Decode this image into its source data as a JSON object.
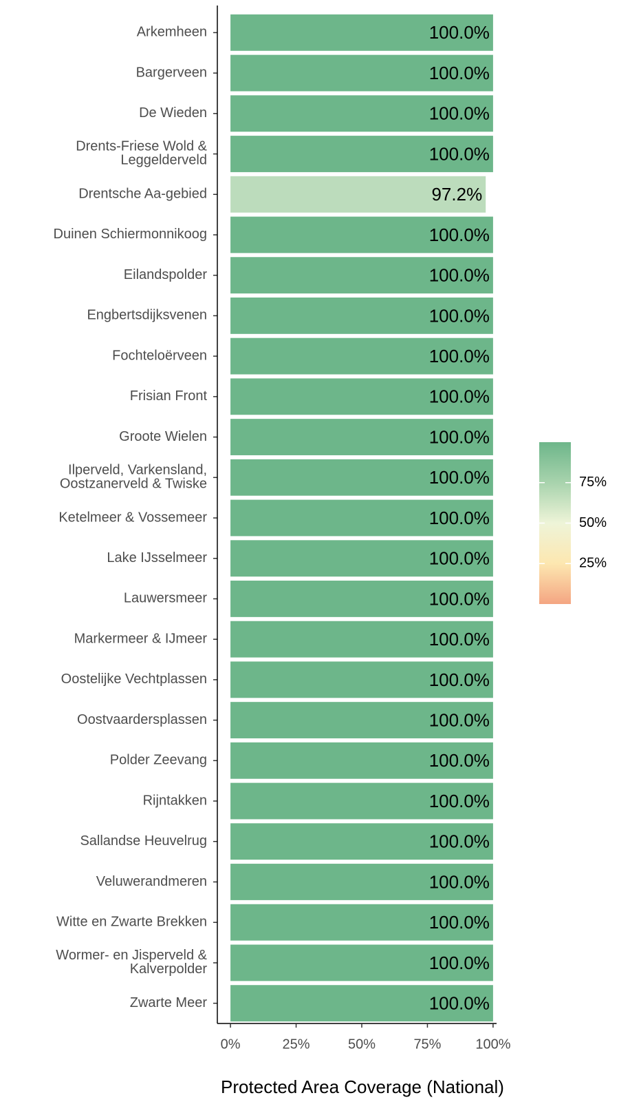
{
  "chart_data": {
    "type": "barh",
    "xlabel": "Protected Area Coverage (National)",
    "categories": [
      "Arkemheen",
      "Bargerveen",
      "De Wieden",
      "Drents-Friese Wold &\nLeggelderveld",
      "Drentsche Aa-gebied",
      "Duinen Schiermonnikoog",
      "Eilandspolder",
      "Engbertsdijksvenen",
      "Fochteloërveen",
      "Frisian Front",
      "Groote Wielen",
      "Ilperveld, Varkensland,\nOostzanerveld & Twiske",
      "Ketelmeer & Vossemeer",
      "Lake IJsselmeer",
      "Lauwersmeer",
      "Markermeer & IJmeer",
      "Oostelijke Vechtplassen",
      "Oostvaardersplassen",
      "Polder Zeevang",
      "Rijntakken",
      "Sallandse Heuvelrug",
      "Veluwerandmeren",
      "Witte en Zwarte Brekken",
      "Wormer- en Jisperveld &\nKalverpolder",
      "Zwarte Meer"
    ],
    "values": [
      100,
      100,
      100,
      100,
      97.2,
      100,
      100,
      100,
      100,
      100,
      100,
      100,
      100,
      100,
      100,
      100,
      100,
      100,
      100,
      100,
      100,
      100,
      100,
      100,
      100
    ],
    "value_labels": [
      "100.0%",
      "100.0%",
      "100.0%",
      "100.0%",
      "97.2%",
      "100.0%",
      "100.0%",
      "100.0%",
      "100.0%",
      "100.0%",
      "100.0%",
      "100.0%",
      "100.0%",
      "100.0%",
      "100.0%",
      "100.0%",
      "100.0%",
      "100.0%",
      "100.0%",
      "100.0%",
      "100.0%",
      "100.0%",
      "100.0%",
      "100.0%",
      "100.0%"
    ],
    "colors": [
      "#6db68a",
      "#6db68a",
      "#6db68a",
      "#6db68a",
      "#bcdcbc",
      "#6db68a",
      "#6db68a",
      "#6db68a",
      "#6db68a",
      "#6db68a",
      "#6db68a",
      "#6db68a",
      "#6db68a",
      "#6db68a",
      "#6db68a",
      "#6db68a",
      "#6db68a",
      "#6db68a",
      "#6db68a",
      "#6db68a",
      "#6db68a",
      "#6db68a",
      "#6db68a",
      "#6db68a",
      "#6db68a"
    ],
    "xlim": [
      -5,
      105
    ],
    "xticks": [
      {
        "value": 0,
        "label": "0%"
      },
      {
        "value": 25,
        "label": "25%"
      },
      {
        "value": 50,
        "label": "50%"
      },
      {
        "value": 75,
        "label": "75%"
      },
      {
        "value": 100,
        "label": "100%"
      }
    ],
    "legend": {
      "lim": [
        0,
        100
      ],
      "ticks": [
        {
          "value": 25,
          "label": "25%"
        },
        {
          "value": 50,
          "label": "50%"
        },
        {
          "value": 75,
          "label": "75%"
        }
      ],
      "colors": [
        "#f4a582",
        "#fde7b0",
        "#eef4d8",
        "#a8d3ad",
        "#6db68a"
      ]
    }
  }
}
